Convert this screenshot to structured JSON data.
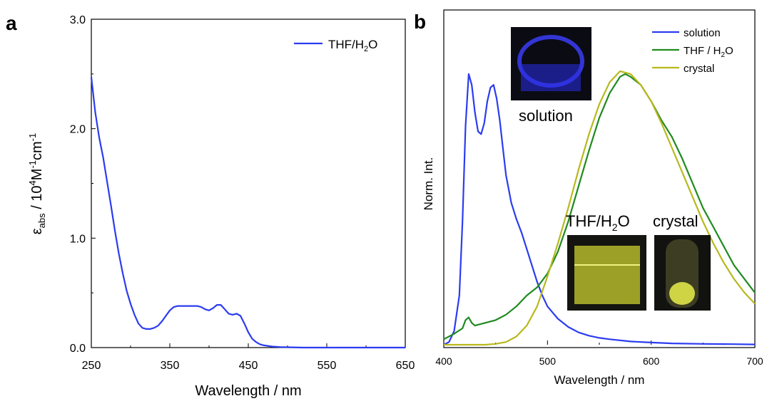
{
  "panels": {
    "a": {
      "letter": "a"
    },
    "b": {
      "letter": "b"
    }
  },
  "photos": {
    "solution": {
      "label": "solution",
      "color": "#2a2ee8"
    },
    "thf_h2o": {
      "label_main": "THF/H",
      "label_sub": "2",
      "label_tail": "O",
      "color": "#d6dc3a"
    },
    "crystal": {
      "label": "crystal",
      "color": "#e8ee4a"
    }
  },
  "chart_data": [
    {
      "type": "line",
      "panel": "a",
      "xlabel": "Wavelength / nm",
      "ylabel": {
        "symbol": "ε",
        "sub": "abs",
        "mid": " / 10",
        "sup1": "4",
        "unit1": "M",
        "sup2": "-1",
        "unit2": "cm",
        "sup3": "-1"
      },
      "xlim": [
        250,
        650
      ],
      "ylim": [
        0.0,
        3.0
      ],
      "xticks": [
        250,
        350,
        450,
        550,
        650
      ],
      "yticks": [
        0.0,
        1.0,
        2.0,
        3.0
      ],
      "ytick_labels": [
        "0.0",
        "1.0",
        "2.0",
        "3.0"
      ],
      "grid": false,
      "legend_position": "top-right",
      "series": [
        {
          "name": "THF/H2O",
          "name_parts": {
            "main": "THF/H",
            "sub": "2",
            "tail": "O"
          },
          "color": "#2b3cf0",
          "x": [
            250,
            255,
            260,
            265,
            270,
            275,
            280,
            285,
            290,
            295,
            300,
            305,
            310,
            315,
            320,
            325,
            330,
            335,
            340,
            345,
            350,
            355,
            360,
            365,
            370,
            375,
            380,
            385,
            390,
            395,
            400,
            405,
            410,
            415,
            420,
            425,
            430,
            435,
            440,
            445,
            450,
            455,
            460,
            465,
            470,
            480,
            490,
            500,
            520,
            550,
            600,
            650
          ],
          "y": [
            2.47,
            2.15,
            1.92,
            1.74,
            1.52,
            1.3,
            1.07,
            0.86,
            0.68,
            0.52,
            0.4,
            0.3,
            0.22,
            0.18,
            0.17,
            0.17,
            0.18,
            0.2,
            0.24,
            0.29,
            0.34,
            0.37,
            0.38,
            0.38,
            0.38,
            0.38,
            0.38,
            0.38,
            0.37,
            0.35,
            0.34,
            0.36,
            0.39,
            0.39,
            0.35,
            0.31,
            0.3,
            0.31,
            0.29,
            0.22,
            0.14,
            0.08,
            0.05,
            0.03,
            0.02,
            0.01,
            0.005,
            0.003,
            0.0,
            0.0,
            0.0,
            0.0
          ]
        }
      ]
    },
    {
      "type": "line",
      "panel": "b",
      "xlabel": "Wavelength / nm",
      "ylabel": "Norm. Int.",
      "xlim": [
        400,
        700
      ],
      "ylim": [
        0,
        1.0
      ],
      "xticks": [
        400,
        500,
        600,
        700
      ],
      "grid": false,
      "legend_position": "top-right",
      "series": [
        {
          "name": "solution",
          "color": "#2b3cf0",
          "x": [
            400,
            405,
            410,
            415,
            418,
            421,
            424,
            427,
            430,
            433,
            436,
            439,
            442,
            445,
            448,
            451,
            454,
            457,
            460,
            465,
            470,
            475,
            480,
            485,
            490,
            495,
            500,
            510,
            520,
            530,
            540,
            550,
            560,
            580,
            600,
            620,
            650,
            680,
            700
          ],
          "y": [
            0.0,
            0.01,
            0.05,
            0.18,
            0.45,
            0.8,
            0.99,
            0.95,
            0.85,
            0.78,
            0.77,
            0.81,
            0.89,
            0.94,
            0.95,
            0.9,
            0.82,
            0.72,
            0.62,
            0.52,
            0.46,
            0.41,
            0.35,
            0.29,
            0.23,
            0.18,
            0.14,
            0.095,
            0.065,
            0.045,
            0.033,
            0.025,
            0.02,
            0.012,
            0.008,
            0.005,
            0.003,
            0.002,
            0.001
          ]
        },
        {
          "name": "THF / H2O",
          "name_parts": {
            "main": "THF / H",
            "sub": "2",
            "tail": "O"
          },
          "color": "#1f8a1f",
          "x": [
            400,
            410,
            418,
            421,
            424,
            427,
            430,
            440,
            450,
            460,
            470,
            480,
            490,
            500,
            510,
            520,
            530,
            540,
            550,
            560,
            570,
            575,
            580,
            590,
            600,
            610,
            620,
            630,
            640,
            650,
            660,
            670,
            680,
            690,
            700
          ],
          "y": [
            0.02,
            0.04,
            0.06,
            0.09,
            0.1,
            0.08,
            0.07,
            0.08,
            0.09,
            0.11,
            0.14,
            0.18,
            0.21,
            0.26,
            0.34,
            0.45,
            0.58,
            0.71,
            0.83,
            0.92,
            0.98,
            0.99,
            0.98,
            0.95,
            0.89,
            0.82,
            0.76,
            0.68,
            0.59,
            0.5,
            0.43,
            0.36,
            0.29,
            0.24,
            0.19
          ]
        },
        {
          "name": "crystal",
          "color": "#b8b81e",
          "x": [
            400,
            440,
            450,
            460,
            470,
            480,
            490,
            500,
            510,
            520,
            530,
            540,
            550,
            560,
            570,
            580,
            590,
            600,
            610,
            620,
            630,
            640,
            650,
            660,
            670,
            680,
            690,
            700
          ],
          "y": [
            0.0,
            0.0,
            0.003,
            0.01,
            0.03,
            0.07,
            0.14,
            0.25,
            0.37,
            0.5,
            0.64,
            0.77,
            0.88,
            0.96,
            1.0,
            0.99,
            0.95,
            0.89,
            0.81,
            0.72,
            0.63,
            0.54,
            0.45,
            0.37,
            0.3,
            0.24,
            0.19,
            0.15
          ]
        }
      ]
    }
  ]
}
